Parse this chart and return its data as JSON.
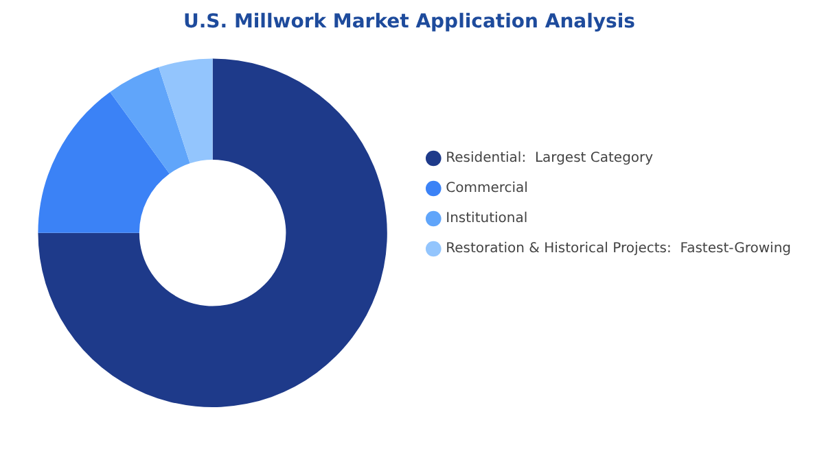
{
  "chart_data": {
    "type": "donut",
    "title": "U.S. Millwork Market Application Analysis",
    "categories": [
      "Residential:  Largest Category",
      "Commercial",
      "Institutional",
      "Restoration & Historical Projects:  Fastest-Growing"
    ],
    "values": [
      75,
      15,
      5,
      5
    ],
    "colors": [
      "#1e3a8a",
      "#3b82f6",
      "#60a5fa",
      "#93c5fd"
    ],
    "legend": "right"
  }
}
